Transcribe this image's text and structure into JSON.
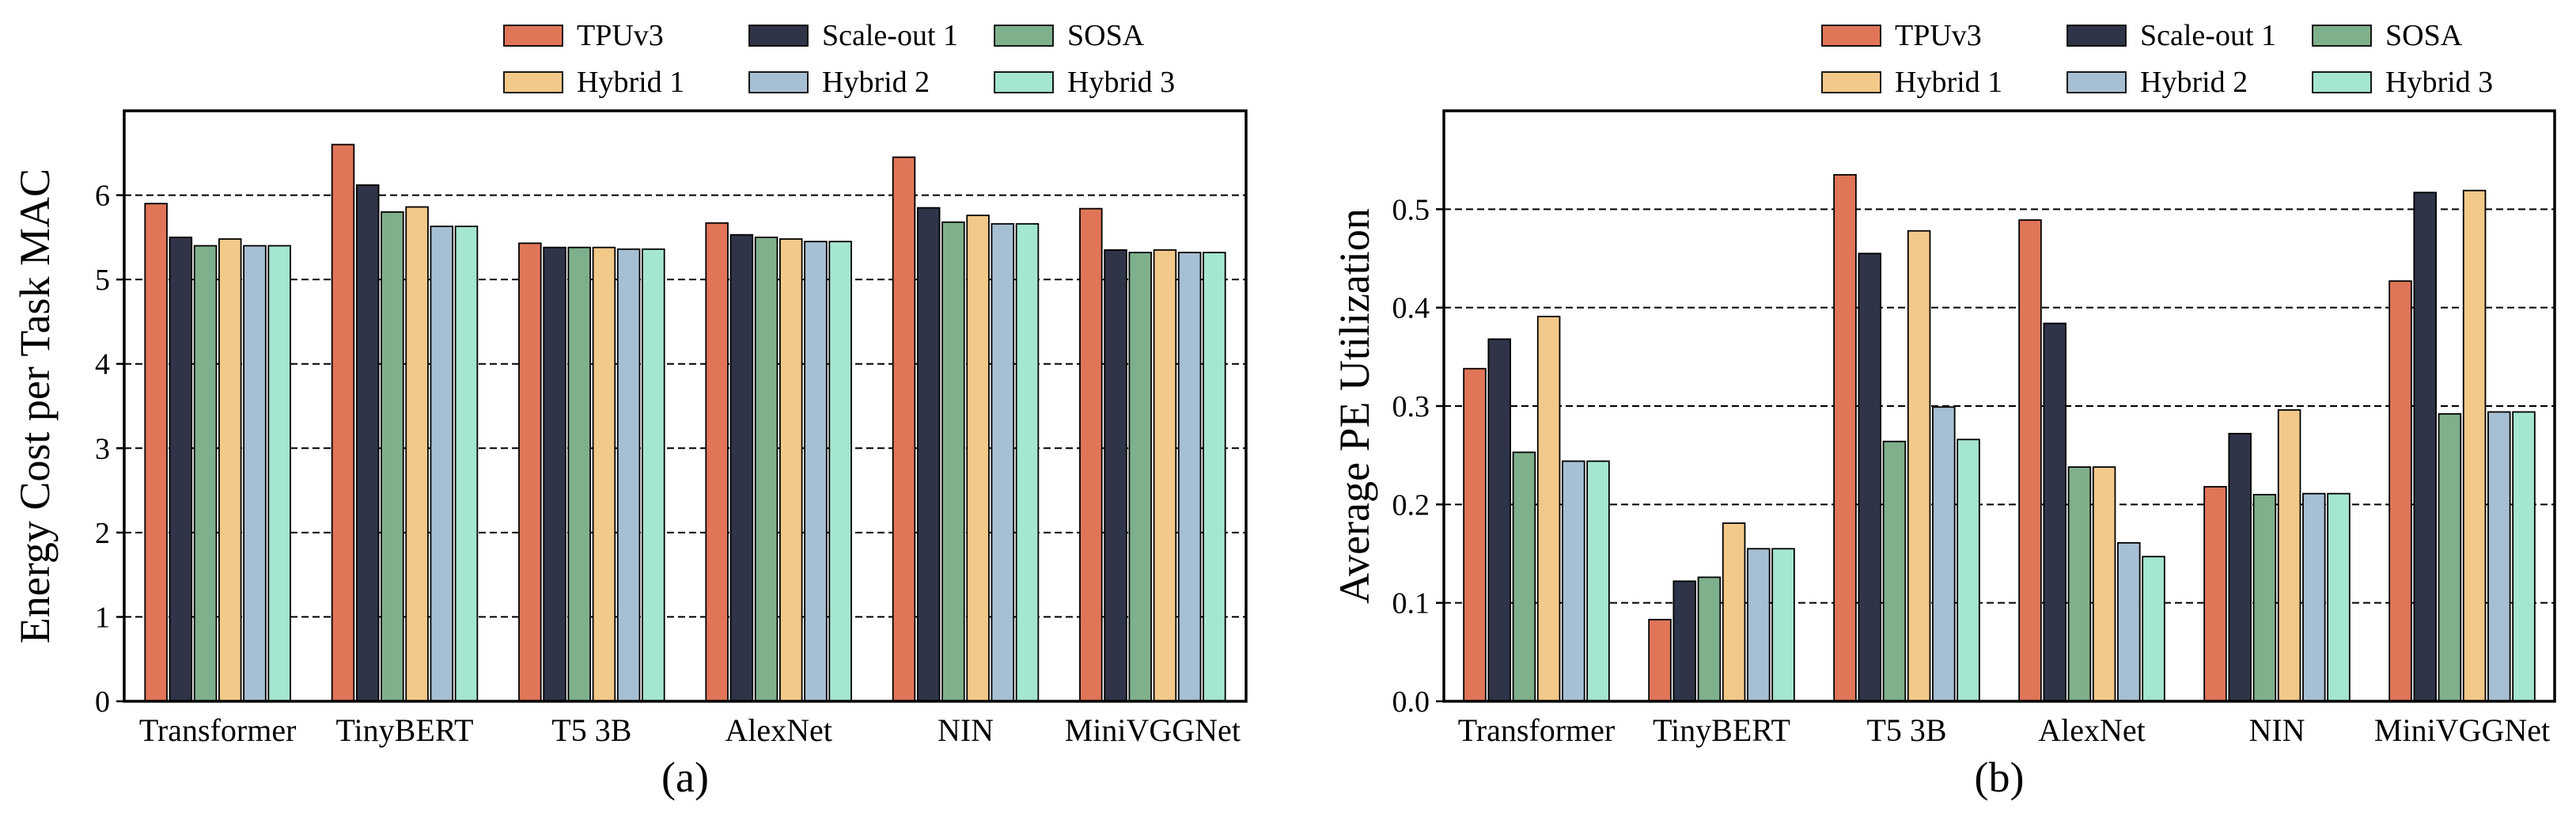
{
  "legend": {
    "items": [
      {
        "name": "TPUv3",
        "color": "#e07558"
      },
      {
        "name": "Scale-out 1",
        "color": "#2f3448"
      },
      {
        "name": "SOSA",
        "color": "#7fb08c"
      },
      {
        "name": "Hybrid 1",
        "color": "#f3c98a"
      },
      {
        "name": "Hybrid 2",
        "color": "#a7bfd3"
      },
      {
        "name": "Hybrid 3",
        "color": "#a4e6cf"
      }
    ]
  },
  "chart_data": [
    {
      "type": "bar",
      "panel_label": "(a)",
      "title": "",
      "xlabel": "",
      "ylabel": "Energy Cost per Task MAC",
      "ylim": [
        0,
        7
      ],
      "yticks": [
        "0",
        "1",
        "2",
        "3",
        "4",
        "5",
        "6"
      ],
      "grid": "horizontal dashed",
      "legend_position": "top-right, above plot",
      "categories": [
        "Transformer",
        "TinyBERT",
        "T5 3B",
        "AlexNet",
        "NIN",
        "MiniVGGNet"
      ],
      "series": [
        {
          "name": "TPUv3",
          "values": [
            5.9,
            6.6,
            5.43,
            5.67,
            6.45,
            5.84
          ]
        },
        {
          "name": "Scale-out 1",
          "values": [
            5.5,
            6.12,
            5.38,
            5.53,
            5.85,
            5.35
          ]
        },
        {
          "name": "SOSA",
          "values": [
            5.4,
            5.8,
            5.38,
            5.5,
            5.68,
            5.32
          ]
        },
        {
          "name": "Hybrid 1",
          "values": [
            5.48,
            5.86,
            5.38,
            5.48,
            5.76,
            5.35
          ]
        },
        {
          "name": "Hybrid 2",
          "values": [
            5.4,
            5.63,
            5.36,
            5.45,
            5.66,
            5.32
          ]
        },
        {
          "name": "Hybrid 3",
          "values": [
            5.4,
            5.63,
            5.36,
            5.45,
            5.66,
            5.32
          ]
        }
      ]
    },
    {
      "type": "bar",
      "panel_label": "(b)",
      "title": "",
      "xlabel": "",
      "ylabel": "Average PE Utilization",
      "ylim": [
        0,
        0.6
      ],
      "yticks": [
        "0.0",
        "0.1",
        "0.2",
        "0.3",
        "0.4",
        "0.5"
      ],
      "grid": "horizontal dashed",
      "legend_position": "top-right, above plot",
      "categories": [
        "Transformer",
        "TinyBERT",
        "T5 3B",
        "AlexNet",
        "NIN",
        "MiniVGGNet"
      ],
      "series": [
        {
          "name": "TPUv3",
          "values": [
            0.338,
            0.083,
            0.535,
            0.489,
            0.218,
            0.427
          ]
        },
        {
          "name": "Scale-out 1",
          "values": [
            0.368,
            0.122,
            0.455,
            0.384,
            0.272,
            0.517
          ]
        },
        {
          "name": "SOSA",
          "values": [
            0.253,
            0.126,
            0.264,
            0.238,
            0.21,
            0.292
          ]
        },
        {
          "name": "Hybrid 1",
          "values": [
            0.391,
            0.181,
            0.478,
            0.238,
            0.296,
            0.519
          ]
        },
        {
          "name": "Hybrid 2",
          "values": [
            0.244,
            0.155,
            0.299,
            0.161,
            0.211,
            0.294
          ]
        },
        {
          "name": "Hybrid 3",
          "values": [
            0.244,
            0.155,
            0.266,
            0.147,
            0.211,
            0.294
          ]
        }
      ]
    }
  ]
}
